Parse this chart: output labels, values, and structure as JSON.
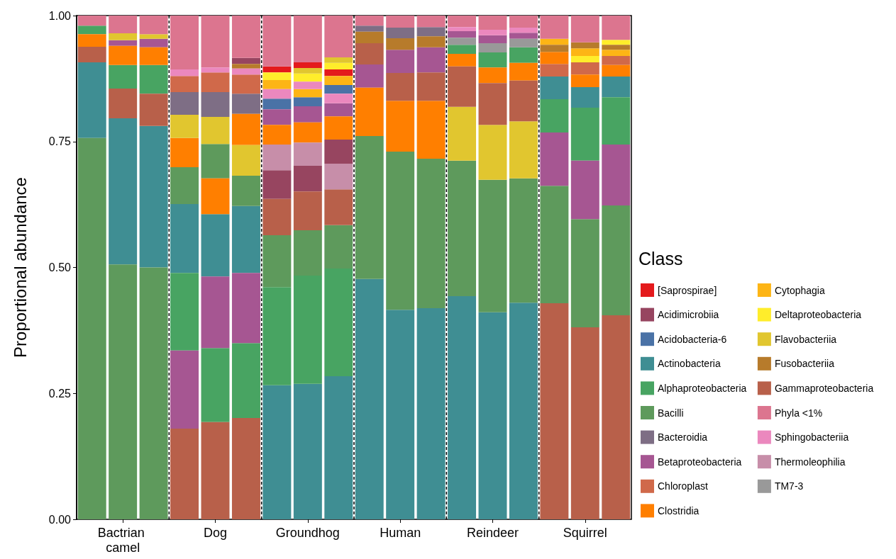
{
  "chart_data": {
    "type": "bar",
    "ylabel": "Proportional abundance",
    "legend_title": "Class",
    "legend": "right",
    "grid": false,
    "categories": [
      null,
      "Bactrian camel",
      null,
      null,
      "Dog",
      null,
      null,
      "Groundhog",
      null,
      null,
      "Human",
      null,
      null,
      "Reindeer",
      null,
      null,
      "Squirrel",
      null
    ],
    "ylim": [
      0,
      1
    ],
    "yticks": [
      {
        "value": 0,
        "label": "0.00"
      },
      {
        "value": 0.25,
        "label": "0.25"
      },
      {
        "value": 0.5,
        "label": "0.50"
      },
      {
        "value": 0.75,
        "label": "0.75"
      },
      {
        "value": 1,
        "label": "1.00"
      }
    ],
    "series": [
      {
        "name": "[Saprospirae]",
        "color": "#e41a1c",
        "values": [
          null,
          null,
          null,
          null,
          null,
          null,
          0.012,
          0.011,
          0.013,
          null,
          null,
          null,
          null,
          null,
          null,
          null,
          null,
          null
        ],
        "base": [
          null,
          null,
          null,
          null,
          null,
          null,
          0.887,
          0.896,
          0.88,
          null,
          null,
          null,
          null,
          null,
          null,
          null,
          null,
          null
        ]
      },
      {
        "name": "Acidimicrobiia",
        "color": "#974560",
        "values": [
          null,
          null,
          null,
          null,
          null,
          0.012,
          0.057,
          0.051,
          0.048,
          null,
          null,
          null,
          null,
          null,
          null,
          null,
          null,
          null
        ],
        "base": [
          null,
          null,
          null,
          null,
          null,
          0.904,
          0.636,
          0.651,
          0.706,
          null,
          null,
          null,
          null,
          null,
          null,
          null,
          null,
          null
        ]
      },
      {
        "name": "Acidobacteria-6",
        "color": "#4a72a6",
        "values": [
          null,
          null,
          null,
          null,
          null,
          null,
          0.021,
          0.018,
          0.017,
          null,
          null,
          null,
          null,
          null,
          null,
          null,
          null,
          null
        ],
        "base": [
          null,
          null,
          null,
          null,
          null,
          null,
          0.814,
          0.82,
          0.845,
          null,
          null,
          null,
          null,
          null,
          null,
          null,
          null,
          null
        ]
      },
      {
        "name": "Actinobacteria",
        "color": "#3f8e93",
        "values": [
          0.15,
          0.29,
          0.281,
          0.137,
          0.124,
          0.133,
          0.266,
          0.269,
          0.284,
          0.477,
          0.416,
          0.419,
          0.443,
          0.411,
          0.43,
          0.045,
          0.041,
          0.041
        ],
        "base": [
          0.757,
          0.506,
          0.5,
          0.489,
          0.482,
          0.489,
          0,
          0,
          0,
          0,
          0,
          0,
          0,
          0,
          0,
          0.834,
          0.817,
          0.838
        ]
      },
      {
        "name": "Alphaproteobacteria",
        "color": "#48a462",
        "values": [
          0.017,
          0.047,
          0.057,
          0.154,
          0.147,
          0.149,
          0.195,
          0.215,
          0.214,
          null,
          null,
          null,
          0.018,
          0.03,
          0.031,
          0.066,
          0.105,
          0.094
        ],
        "base": [
          0.963,
          0.855,
          0.845,
          0.335,
          0.193,
          0.201,
          0.266,
          0.269,
          0.284,
          null,
          null,
          null,
          0.924,
          0.897,
          0.906,
          0.768,
          0.712,
          0.744
        ]
      },
      {
        "name": "Bacilli",
        "color": "#5e9a5c",
        "values": [
          0.757,
          0.506,
          0.5,
          0.073,
          0.068,
          0.06,
          0.103,
          0.09,
          0.086,
          0.284,
          0.314,
          0.297,
          0.269,
          0.263,
          0.247,
          0.233,
          0.215,
          0.218
        ],
        "base": [
          0,
          0,
          0,
          0.626,
          0.677,
          0.622,
          0.461,
          0.484,
          0.498,
          0.477,
          0.416,
          0.419,
          0.443,
          0.411,
          0.43,
          0.429,
          0.381,
          0.405
        ]
      },
      {
        "name": "Bacteroidia",
        "color": "#7e6e85",
        "values": [
          null,
          null,
          null,
          0.045,
          0.049,
          0.04,
          null,
          null,
          null,
          0.012,
          0.021,
          0.018,
          null,
          null,
          null,
          null,
          null,
          null
        ],
        "base": [
          null,
          null,
          null,
          0.803,
          0.799,
          0.805,
          null,
          null,
          null,
          0.968,
          0.955,
          0.959,
          null,
          null,
          null,
          null,
          null,
          null
        ]
      },
      {
        "name": "Betaproteobacteria",
        "color": "#a65692",
        "values": [
          null,
          0.011,
          0.017,
          0.155,
          0.142,
          0.139,
          0.031,
          0.032,
          0.026,
          0.046,
          0.046,
          0.05,
          0.013,
          0.016,
          0.012,
          0.106,
          0.116,
          0.121
        ],
        "base": [
          null,
          0.94,
          0.937,
          0.18,
          0.34,
          0.35,
          0.783,
          0.788,
          0.8,
          0.857,
          0.886,
          0.887,
          0.956,
          0.945,
          0.954,
          0.662,
          0.596,
          0.623
        ]
      },
      {
        "name": "Chloroplast",
        "color": "#d0694a",
        "values": [
          null,
          null,
          null,
          0.032,
          0.039,
          0.038,
          null,
          null,
          null,
          null,
          null,
          null,
          null,
          null,
          null,
          0.025,
          0.024,
          0.018
        ],
        "base": [
          null,
          null,
          null,
          0.848,
          0.848,
          0.845,
          null,
          null,
          null,
          null,
          null,
          null,
          null,
          null,
          null,
          0.879,
          0.883,
          0.902
        ]
      },
      {
        "name": "Clostridia",
        "color": "#ff7f00",
        "values": [
          0.025,
          0.038,
          0.035,
          0.058,
          0.071,
          0.062,
          0.039,
          0.04,
          0.046,
          0.096,
          0.101,
          0.115,
          0.025,
          0.031,
          0.035,
          0.024,
          0.025,
          0.023
        ],
        "base": [
          0.938,
          0.902,
          0.902,
          0.699,
          0.606,
          0.743,
          0.744,
          0.748,
          0.754,
          0.761,
          0.73,
          0.716,
          0.899,
          0.866,
          0.871,
          0.904,
          0.858,
          0.879
        ]
      },
      {
        "name": "Cytophagia",
        "color": "#fdb515",
        "values": [
          null,
          null,
          null,
          null,
          null,
          null,
          0.018,
          0.016,
          0.018,
          null,
          null,
          null,
          null,
          null,
          null,
          0.012,
          0.015,
          0.012
        ],
        "base": [
          null,
          null,
          null,
          null,
          null,
          null,
          0.854,
          0.838,
          0.862,
          null,
          null,
          null,
          null,
          null,
          null,
          0.942,
          0.92,
          0.92
        ]
      },
      {
        "name": "Deltaproteobacteria",
        "color": "#ffed2b",
        "values": [
          null,
          null,
          null,
          null,
          null,
          null,
          0.015,
          0.016,
          0.013,
          null,
          null,
          null,
          null,
          null,
          null,
          null,
          0.013,
          0.01
        ],
        "base": [
          null,
          null,
          null,
          null,
          null,
          null,
          0.872,
          0.869,
          0.893,
          null,
          null,
          null,
          null,
          null,
          null,
          null,
          0.907,
          0.942
        ]
      },
      {
        "name": "Flavobacteriia",
        "color": "#e1c62f",
        "values": [
          null,
          0.014,
          0.009,
          0.046,
          0.054,
          0.061,
          null,
          0.011,
          0.011,
          null,
          null,
          null,
          0.107,
          0.109,
          0.113,
          null,
          null,
          null
        ],
        "base": [
          null,
          0.951,
          0.954,
          0.757,
          0.745,
          0.682,
          null,
          0.885,
          0.906,
          null,
          null,
          null,
          0.712,
          0.674,
          0.677,
          null,
          null,
          null
        ]
      },
      {
        "name": "Fusobacteriia",
        "color": "#b77b2b",
        "values": [
          null,
          null,
          null,
          null,
          null,
          0.009,
          null,
          null,
          null,
          0.023,
          0.023,
          0.022,
          null,
          null,
          null,
          0.014,
          0.012,
          0.01
        ],
        "base": [
          null,
          null,
          null,
          null,
          null,
          0.895,
          null,
          null,
          null,
          0.945,
          0.932,
          0.937,
          null,
          null,
          null,
          0.928,
          0.935,
          0.932
        ]
      },
      {
        "name": "Gammaproteobacteria",
        "color": "#b8604a",
        "values": [
          0.031,
          0.059,
          0.064,
          0.18,
          0.193,
          0.201,
          0.072,
          0.077,
          0.071,
          0.042,
          0.055,
          0.056,
          0.08,
          0.083,
          0.081,
          0.429,
          0.381,
          0.405
        ],
        "base": [
          0.907,
          0.796,
          0.781,
          0,
          0,
          0,
          0.564,
          0.574,
          0.584,
          0.903,
          0.831,
          0.831,
          0.819,
          0.783,
          0.79,
          0,
          0,
          0
        ]
      },
      {
        "name": "Phyla <1%",
        "color": "#dc758f",
        "values": [
          0.02,
          0.035,
          0.037,
          0.107,
          0.103,
          0.084,
          0.101,
          0.093,
          0.083,
          0.02,
          0.024,
          0.023,
          0.023,
          0.028,
          0.024,
          0.046,
          0.053,
          0.048
        ],
        "base": [
          0.98,
          0.965,
          0.963,
          0.893,
          0.897,
          0.916,
          0.899,
          0.907,
          0.917,
          0.98,
          0.976,
          0.977,
          0.977,
          0.972,
          0.976,
          0.954,
          0.947,
          0.952
        ]
      },
      {
        "name": "Sphingobacteriia",
        "color": "#eb88be",
        "values": [
          null,
          null,
          null,
          0.013,
          0.01,
          0.012,
          0.019,
          0.015,
          0.019,
          null,
          null,
          null,
          0.008,
          0.011,
          0.01,
          null,
          null,
          null
        ],
        "base": [
          null,
          null,
          null,
          0.88,
          0.887,
          0.883,
          0.835,
          0.854,
          0.826,
          null,
          null,
          null,
          0.969,
          0.961,
          0.966,
          null,
          null,
          null
        ]
      },
      {
        "name": "Thermoleophilia",
        "color": "#c78ea9",
        "values": [
          null,
          null,
          null,
          null,
          null,
          null,
          0.051,
          0.046,
          0.051,
          null,
          null,
          null,
          null,
          null,
          null,
          null,
          null,
          null
        ],
        "base": [
          null,
          null,
          null,
          null,
          null,
          null,
          0.693,
          0.702,
          0.655,
          null,
          null,
          null,
          null,
          null,
          null,
          null,
          null,
          null
        ]
      },
      {
        "name": "TM7-3",
        "color": "#999999",
        "values": [
          null,
          null,
          null,
          null,
          null,
          null,
          null,
          null,
          null,
          null,
          null,
          null,
          0.014,
          0.018,
          0.017,
          null,
          null,
          null
        ],
        "base": [
          null,
          null,
          null,
          null,
          null,
          null,
          null,
          null,
          null,
          null,
          null,
          null,
          0.942,
          0.927,
          0.937,
          null,
          null,
          null
        ]
      }
    ]
  }
}
